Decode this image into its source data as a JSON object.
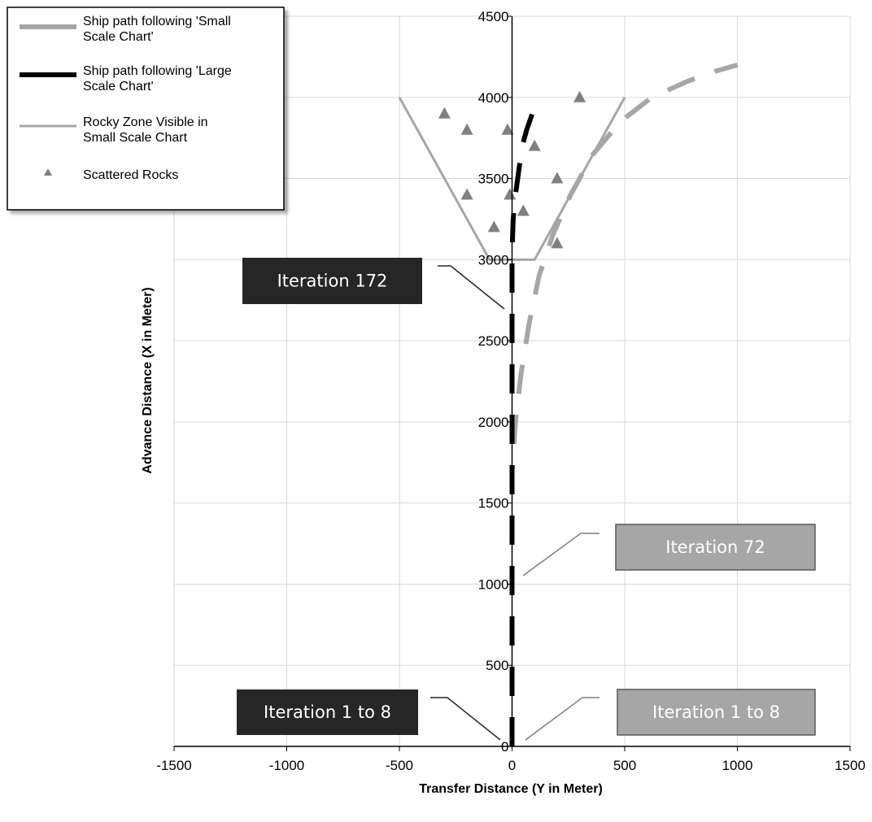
{
  "chart_data": {
    "type": "scatter",
    "xlabel": "Transfer Distance (Y in Meter)",
    "ylabel": "Advance Distance (X in Meter)",
    "xlim": [
      -1500,
      1500
    ],
    "ylim": [
      0,
      4500
    ],
    "x_ticks": [
      -1500,
      -1000,
      -500,
      0,
      500,
      1000,
      1500
    ],
    "y_ticks": [
      0,
      500,
      1000,
      1500,
      2000,
      2500,
      3000,
      3500,
      4000,
      4500
    ],
    "grid": true,
    "legend_position": "top-left",
    "series": [
      {
        "name": "Ship path following 'Small Scale Chart'",
        "style": "dashed-thick",
        "color": "#a6a6a6",
        "x": [
          0,
          0,
          15,
          40,
          75,
          120,
          180,
          260,
          360,
          480,
          620,
          780,
          900,
          1000
        ],
        "y": [
          0,
          1700,
          2000,
          2300,
          2600,
          2900,
          3150,
          3400,
          3650,
          3850,
          4000,
          4100,
          4160,
          4200
        ]
      },
      {
        "name": "Ship path following 'Large Scale Chart'",
        "style": "dashed-thick",
        "color": "#000000",
        "x": [
          0,
          0,
          0,
          5,
          15,
          30,
          45,
          65,
          90,
          120
        ],
        "y": [
          0,
          2900,
          3050,
          3250,
          3400,
          3550,
          3700,
          3800,
          3900,
          4000
        ]
      },
      {
        "name": "Rocky Zone Visible in Small Scale Chart",
        "style": "solid",
        "color": "#a6a6a6",
        "x": [
          -500,
          -100,
          100,
          500
        ],
        "y": [
          4000,
          3000,
          3000,
          4000
        ]
      },
      {
        "name": "Scattered Rocks",
        "style": "marker-triangle",
        "color": "#808080",
        "x": [
          -300,
          -200,
          -200,
          -20,
          -10,
          -80,
          100,
          50,
          200,
          200,
          300
        ],
        "y": [
          3900,
          3800,
          3400,
          3800,
          3400,
          3200,
          3700,
          3300,
          3500,
          3100,
          4000
        ]
      }
    ],
    "annotations": [
      {
        "text": "Iteration 172",
        "style": "dark"
      },
      {
        "text": "Iteration 72",
        "style": "light"
      },
      {
        "text": "Iteration 1 to 8",
        "style": "dark"
      },
      {
        "text": "Iteration 1 to 8",
        "style": "light"
      }
    ]
  }
}
